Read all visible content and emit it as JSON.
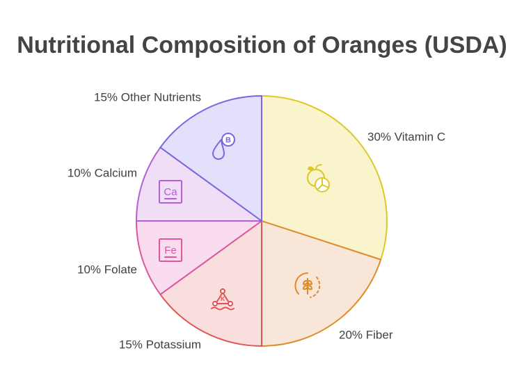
{
  "chart_data": {
    "type": "pie",
    "title": "Nutritional Composition of Oranges (USDA)",
    "start_angle_deg": 0,
    "direction": "clockwise",
    "slices": [
      {
        "name": "Vitamin C",
        "value": 30,
        "label": "30% Vitamin C",
        "icon": "orange-icon",
        "fill": "#f9f4cc",
        "stroke": "#ddc82a"
      },
      {
        "name": "Fiber",
        "value": 20,
        "label": "20% Fiber",
        "icon": "wheat-icon",
        "fill": "#f8e6d8",
        "stroke": "#df8a29"
      },
      {
        "name": "Potassium",
        "value": 15,
        "label": "15% Potassium",
        "icon": "potassium-molecule-icon",
        "fill": "#f9dede",
        "stroke": "#de5454"
      },
      {
        "name": "Folate",
        "value": 10,
        "label": "10% Folate",
        "icon": "fe-element-icon",
        "fill": "#f9ddee",
        "stroke": "#dd55a0"
      },
      {
        "name": "Calcium",
        "value": 10,
        "label": "10% Calcium",
        "icon": "ca-element-icon",
        "fill": "#f0ddf6",
        "stroke": "#b35fd4"
      },
      {
        "name": "Other Nutrients",
        "value": 15,
        "label": "15% Other Nutrients",
        "icon": "vitamin-b-drop-icon",
        "fill": "#e3e0fb",
        "stroke": "#7d64e0"
      }
    ]
  }
}
